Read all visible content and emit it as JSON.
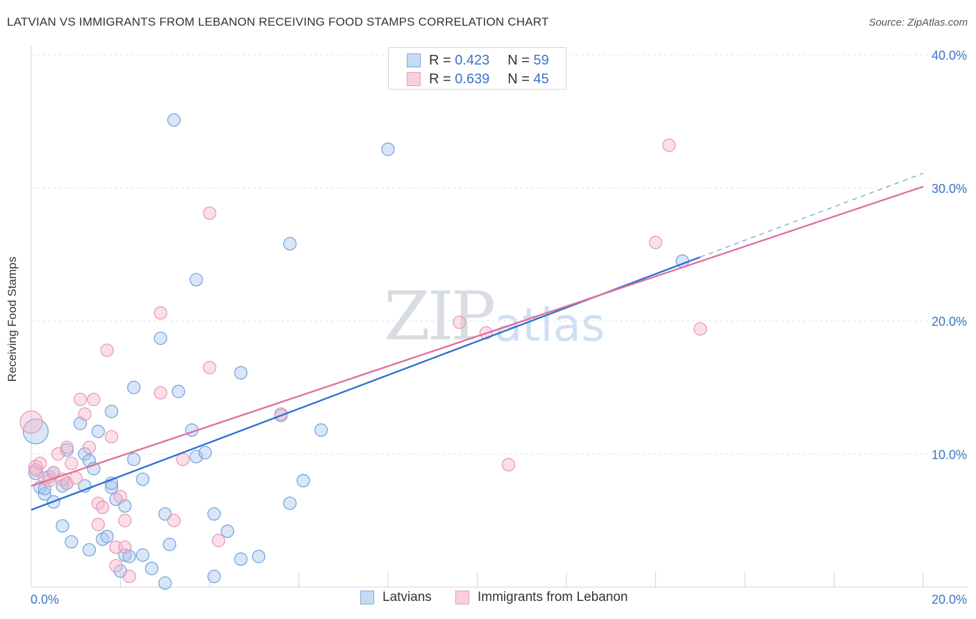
{
  "title": "LATVIAN VS IMMIGRANTS FROM LEBANON RECEIVING FOOD STAMPS CORRELATION CHART",
  "source": "Source: ZipAtlas.com",
  "watermark": {
    "zip": "ZIP",
    "atlas": "atlas"
  },
  "legend": {
    "latvians": {
      "r_label": "R = ",
      "r_value": "0.423",
      "n_label": "N = ",
      "n_value": "59"
    },
    "lebanon": {
      "r_label": "R = ",
      "r_value": "0.639",
      "n_label": "N = ",
      "n_value": "45"
    }
  },
  "bottom_legend": {
    "latvians": "Latvians",
    "lebanon": "Immigrants from Lebanon"
  },
  "colors": {
    "blue_fill": "#a9c8f0",
    "blue_stroke": "#6f9fdc",
    "blue_line": "#2f6fcf",
    "pink_fill": "#f5b9cc",
    "pink_stroke": "#e893b0",
    "pink_line": "#e0709a",
    "axis_text": "#3a73c9"
  },
  "chart_data": {
    "type": "scatter",
    "title": "LATVIAN VS IMMIGRANTS FROM LEBANON RECEIVING FOOD STAMPS CORRELATION CHART",
    "xlabel": "",
    "ylabel": "Receiving Food Stamps",
    "xlim": [
      0,
      20
    ],
    "ylim": [
      0,
      40
    ],
    "x_tick_labels": [
      "0.0%",
      "20.0%"
    ],
    "y_ticks": [
      10,
      20,
      30,
      40
    ],
    "y_tick_labels": [
      "10.0%",
      "20.0%",
      "30.0%",
      "40.0%"
    ],
    "grid": true,
    "series": [
      {
        "name": "Latvians",
        "r": 0.423,
        "n": 59,
        "trend": {
          "x0": 0,
          "y0": 5.8,
          "x1": 15.0,
          "y1": 24.8,
          "dashed_to_x": 20,
          "dashed_to_y": 31.1
        },
        "points": [
          [
            0.1,
            11.7,
            18
          ],
          [
            0.1,
            8.6,
            10
          ],
          [
            0.2,
            7.5,
            9
          ],
          [
            0.3,
            7.0,
            9
          ],
          [
            0.3,
            7.4,
            9
          ],
          [
            0.4,
            8.3,
            9
          ],
          [
            0.5,
            8.6,
            9
          ],
          [
            0.5,
            6.4,
            9
          ],
          [
            0.7,
            7.6,
            9
          ],
          [
            0.7,
            4.6,
            9
          ],
          [
            0.8,
            7.8,
            9
          ],
          [
            0.8,
            10.3,
            9
          ],
          [
            0.9,
            3.4,
            9
          ],
          [
            1.1,
            12.3,
            9
          ],
          [
            1.2,
            7.6,
            9
          ],
          [
            1.2,
            10.0,
            9
          ],
          [
            1.3,
            2.8,
            9
          ],
          [
            1.3,
            9.5,
            9
          ],
          [
            1.4,
            8.9,
            9
          ],
          [
            1.5,
            11.7,
            9
          ],
          [
            1.6,
            3.6,
            9
          ],
          [
            1.7,
            3.8,
            9
          ],
          [
            1.8,
            7.5,
            9
          ],
          [
            1.8,
            7.8,
            9
          ],
          [
            1.8,
            13.2,
            9
          ],
          [
            1.9,
            6.6,
            9
          ],
          [
            2.0,
            1.2,
            9
          ],
          [
            2.1,
            2.4,
            9
          ],
          [
            2.1,
            6.1,
            9
          ],
          [
            2.2,
            2.3,
            9
          ],
          [
            2.3,
            9.6,
            9
          ],
          [
            2.3,
            15.0,
            9
          ],
          [
            2.5,
            2.4,
            9
          ],
          [
            2.5,
            8.1,
            9
          ],
          [
            2.7,
            1.4,
            9
          ],
          [
            2.9,
            18.7,
            9
          ],
          [
            3.0,
            5.5,
            9
          ],
          [
            3.0,
            0.3,
            9
          ],
          [
            3.1,
            3.2,
            9
          ],
          [
            3.2,
            35.1,
            9
          ],
          [
            3.3,
            14.7,
            9
          ],
          [
            3.6,
            11.8,
            9
          ],
          [
            3.7,
            23.1,
            9
          ],
          [
            3.7,
            9.8,
            9
          ],
          [
            3.9,
            10.1,
            9
          ],
          [
            4.1,
            0.8,
            9
          ],
          [
            4.1,
            5.5,
            9
          ],
          [
            4.4,
            4.2,
            9
          ],
          [
            4.7,
            2.1,
            9
          ],
          [
            4.7,
            16.1,
            9
          ],
          [
            5.1,
            2.3,
            9
          ],
          [
            5.6,
            12.9,
            9
          ],
          [
            5.8,
            25.8,
            9
          ],
          [
            5.8,
            6.3,
            9
          ],
          [
            6.1,
            8.0,
            9
          ],
          [
            6.5,
            11.8,
            9
          ],
          [
            8.0,
            32.9,
            9
          ],
          [
            14.6,
            24.5,
            9
          ]
        ]
      },
      {
        "name": "Immigrants from Lebanon",
        "r": 0.639,
        "n": 45,
        "trend": {
          "x0": 0,
          "y0": 7.6,
          "x1": 20,
          "y1": 30.1
        },
        "points": [
          [
            0.0,
            12.4,
            16
          ],
          [
            0.1,
            9.0,
            10
          ],
          [
            0.1,
            8.8,
            9
          ],
          [
            0.2,
            9.3,
            9
          ],
          [
            0.3,
            8.2,
            9
          ],
          [
            0.4,
            8.0,
            9
          ],
          [
            0.5,
            8.6,
            9
          ],
          [
            0.6,
            10.0,
            9
          ],
          [
            0.7,
            8.1,
            9
          ],
          [
            0.8,
            7.8,
            9
          ],
          [
            0.8,
            10.5,
            9
          ],
          [
            0.9,
            9.3,
            9
          ],
          [
            1.0,
            8.2,
            9
          ],
          [
            1.1,
            14.1,
            9
          ],
          [
            1.2,
            13.0,
            9
          ],
          [
            1.3,
            10.5,
            9
          ],
          [
            1.4,
            14.1,
            9
          ],
          [
            1.5,
            6.3,
            9
          ],
          [
            1.5,
            4.7,
            9
          ],
          [
            1.6,
            6.0,
            9
          ],
          [
            1.7,
            17.8,
            9
          ],
          [
            1.8,
            11.3,
            9
          ],
          [
            1.9,
            1.6,
            9
          ],
          [
            1.9,
            3.0,
            9
          ],
          [
            2.0,
            6.8,
            9
          ],
          [
            2.1,
            3.0,
            9
          ],
          [
            2.1,
            5.0,
            9
          ],
          [
            2.2,
            0.8,
            9
          ],
          [
            2.9,
            20.6,
            9
          ],
          [
            2.9,
            14.6,
            9
          ],
          [
            3.2,
            5.0,
            9
          ],
          [
            3.4,
            9.6,
            9
          ],
          [
            4.0,
            28.1,
            9
          ],
          [
            4.0,
            16.5,
            9
          ],
          [
            4.2,
            3.5,
            9
          ],
          [
            5.6,
            13.0,
            9
          ],
          [
            9.6,
            19.9,
            9
          ],
          [
            10.2,
            19.1,
            9
          ],
          [
            10.7,
            9.2,
            9
          ],
          [
            14.0,
            25.9,
            9
          ],
          [
            14.3,
            33.2,
            9
          ],
          [
            15.0,
            19.4,
            9
          ]
        ]
      }
    ]
  }
}
